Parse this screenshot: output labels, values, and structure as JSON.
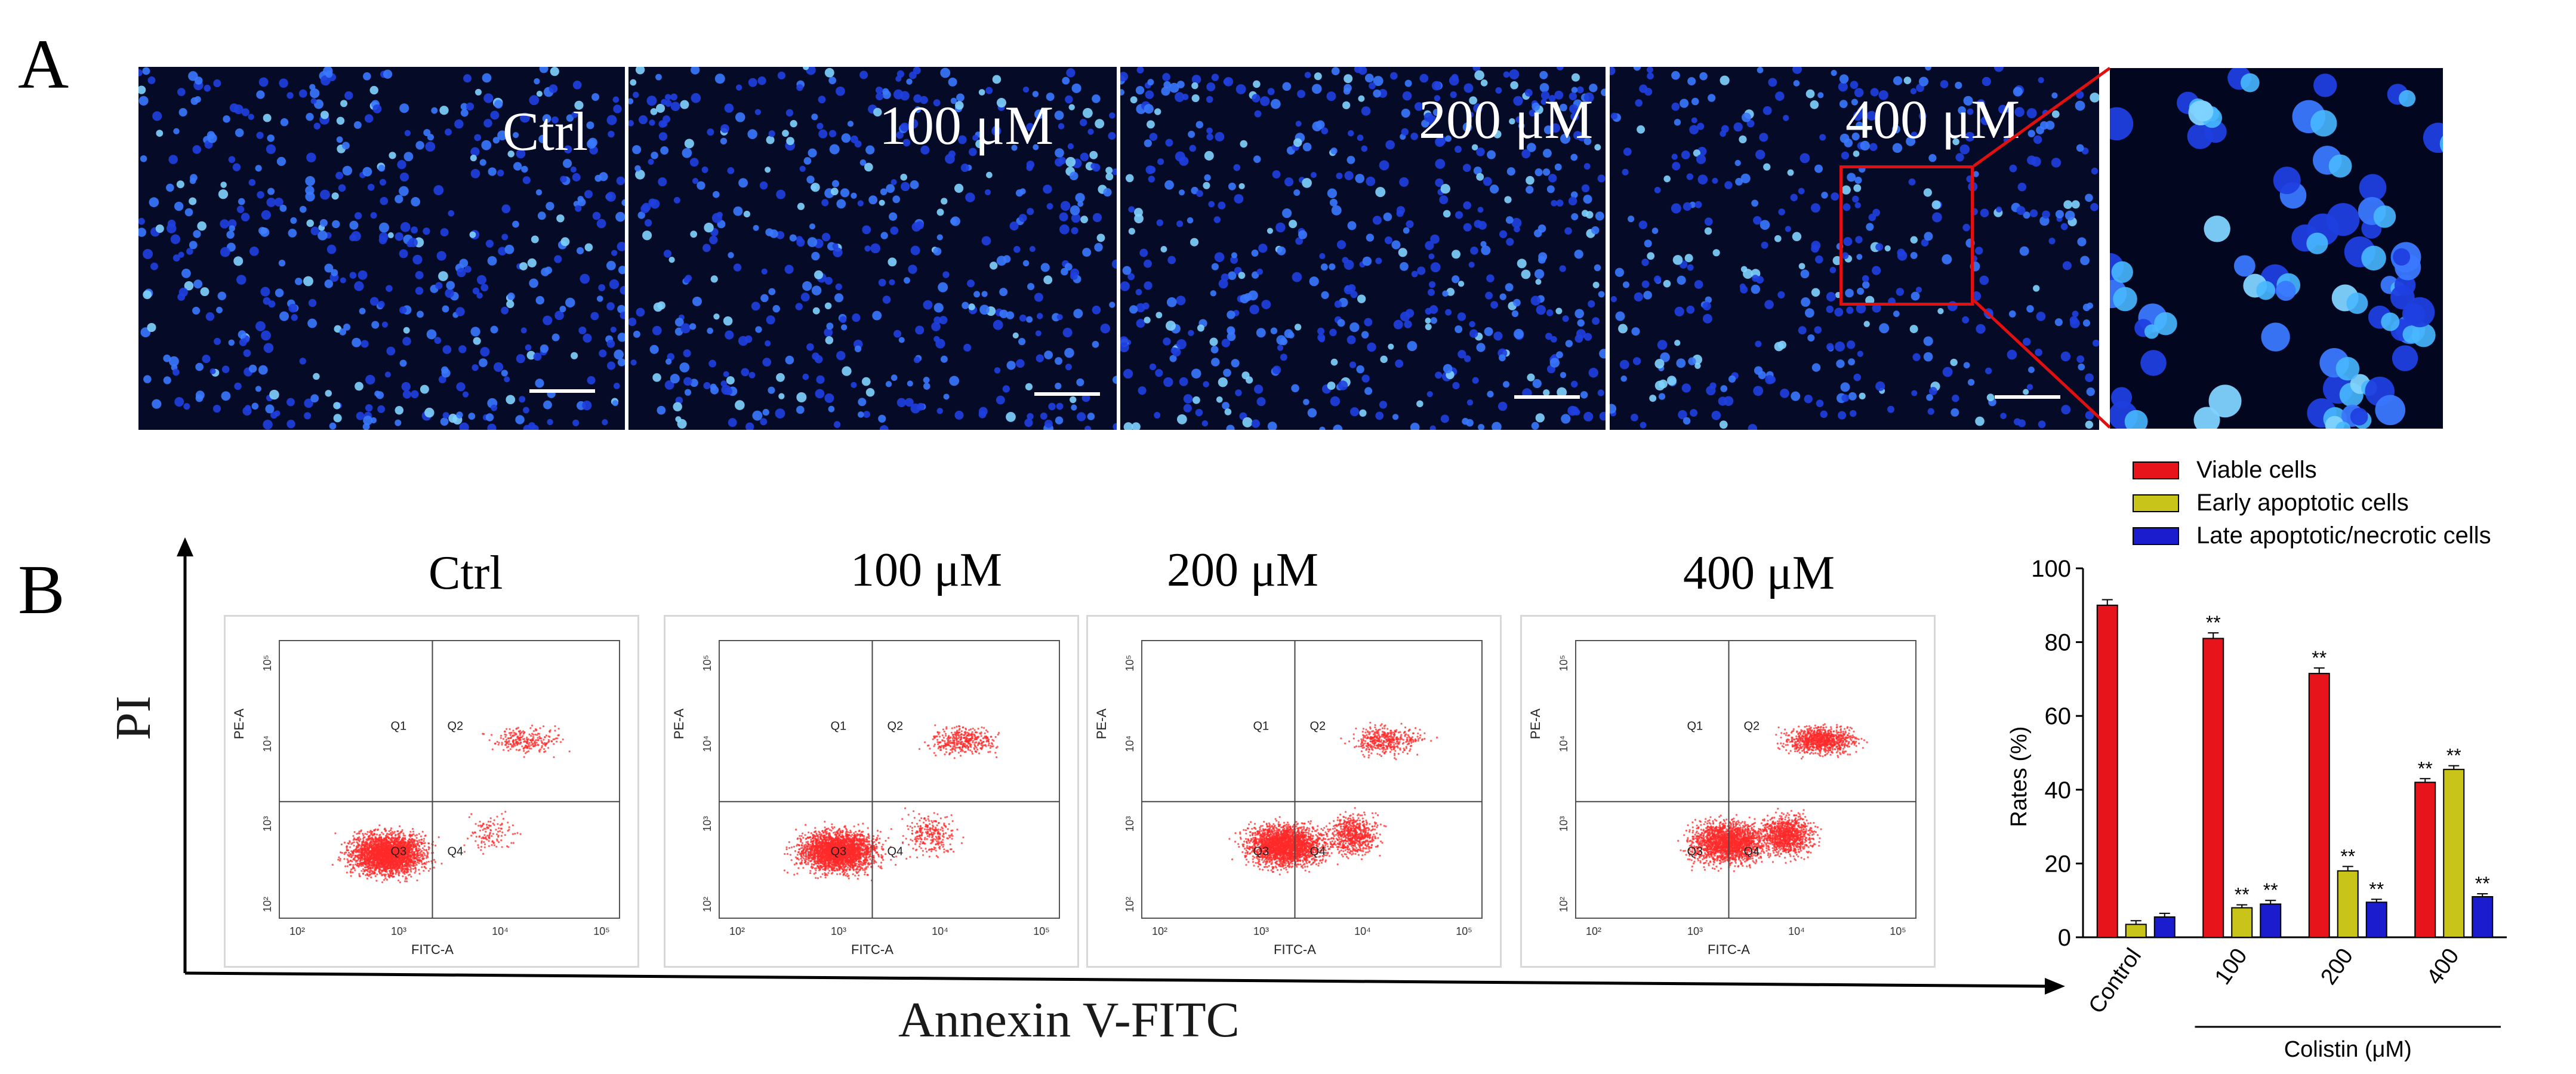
{
  "panel_a": {
    "letter": "A",
    "images": [
      {
        "label": "Ctrl"
      },
      {
        "label": "100 μM"
      },
      {
        "label": "200 μM"
      },
      {
        "label": "400 μM"
      },
      {
        "label": ""
      }
    ]
  },
  "panel_b": {
    "letter": "B",
    "y_axis_label": "PI",
    "x_axis_label": "Annexin V-FITC",
    "flow_plots": [
      {
        "title": "Ctrl"
      },
      {
        "title": "100 μM"
      },
      {
        "title": "200 μM"
      },
      {
        "title": "400 μM"
      }
    ],
    "flow_axis": {
      "x_label": "FITC-A",
      "y_label": "PE-A",
      "x_ticks": [
        "10²",
        "10³",
        "10⁴",
        "10⁵"
      ],
      "y_ticks": [
        "10²",
        "10³",
        "10⁴",
        "10⁵"
      ],
      "quadrants": [
        "Q1",
        "Q2",
        "Q3",
        "Q4"
      ]
    }
  },
  "colors": {
    "viable": "#e8141b",
    "early": "#c8c41a",
    "late": "#1c1ccf",
    "micro_bg": "#050a26",
    "nuclei": "#2e5cff",
    "flow_dots": "#ff2020"
  },
  "chart_data": {
    "type": "bar",
    "ylabel": "Rates (%)",
    "xlabel": "Colistin (μM)",
    "ylim": [
      0,
      100
    ],
    "yticks": [
      0,
      20,
      40,
      60,
      80,
      100
    ],
    "categories": [
      "Control",
      "100",
      "200",
      "400"
    ],
    "series": [
      {
        "name": "Viable cells",
        "values": [
          90,
          81,
          71.5,
          42
        ],
        "errors": [
          1.5,
          1.5,
          1.5,
          1
        ],
        "sig": [
          "",
          "**",
          "**",
          "**"
        ]
      },
      {
        "name": "Early apoptotic cells",
        "values": [
          3.5,
          8,
          18,
          45.5
        ],
        "errors": [
          1,
          0.8,
          1.2,
          1
        ],
        "sig": [
          "",
          "**",
          "**",
          "**"
        ]
      },
      {
        "name": "Late apoptotic/necrotic cells",
        "values": [
          5.5,
          9,
          9.5,
          11
        ],
        "errors": [
          1,
          1,
          0.8,
          0.8
        ],
        "sig": [
          "",
          "**",
          "**",
          "**"
        ]
      }
    ]
  }
}
